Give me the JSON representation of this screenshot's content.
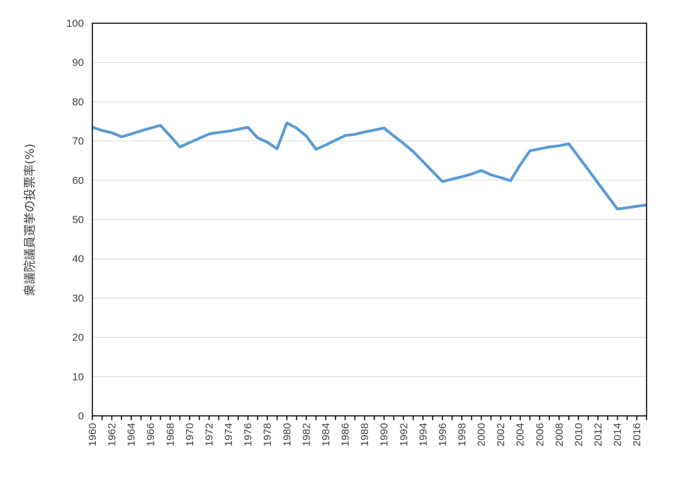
{
  "chart_data": {
    "type": "line",
    "title": "",
    "xlabel": "",
    "ylabel": "衆議院議員選挙の投票率(%)",
    "xlim": [
      1960,
      2017
    ],
    "ylim": [
      0,
      100
    ],
    "y_ticks": [
      0,
      10,
      20,
      30,
      40,
      50,
      60,
      70,
      80,
      90,
      100
    ],
    "x_tick_labels": [
      1960,
      1962,
      1964,
      1966,
      1968,
      1970,
      1972,
      1974,
      1976,
      1978,
      1980,
      1982,
      1984,
      1986,
      1988,
      1990,
      1992,
      1994,
      1996,
      1998,
      2000,
      2002,
      2004,
      2006,
      2008,
      2010,
      2012,
      2014,
      2016
    ],
    "grid": "horizontal",
    "legend": "none",
    "series": [
      {
        "color": "#5b9bd5",
        "x": [
          1960,
          1961,
          1962,
          1963,
          1964,
          1965,
          1966,
          1967,
          1968,
          1969,
          1970,
          1971,
          1972,
          1973,
          1974,
          1975,
          1976,
          1977,
          1978,
          1979,
          1980,
          1981,
          1982,
          1983,
          1984,
          1985,
          1986,
          1987,
          1988,
          1989,
          1990,
          1991,
          1992,
          1993,
          1994,
          1995,
          1996,
          1997,
          1998,
          1999,
          2000,
          2001,
          2002,
          2003,
          2004,
          2005,
          2006,
          2007,
          2008,
          2009,
          2010,
          2011,
          2012,
          2013,
          2014,
          2015,
          2016,
          2017
        ],
        "y": [
          73.5,
          72.7,
          72.1,
          71.1,
          71.8,
          72.6,
          73.3,
          74.0,
          71.3,
          68.5,
          69.6,
          70.7,
          71.8,
          72.2,
          72.5,
          73.0,
          73.5,
          70.8,
          69.7,
          68.0,
          74.6,
          73.3,
          71.3,
          67.9,
          69.0,
          70.2,
          71.4,
          71.7,
          72.3,
          72.8,
          73.3,
          71.3,
          69.4,
          67.3,
          64.8,
          62.2,
          59.7,
          60.3,
          60.9,
          61.6,
          62.5,
          61.4,
          60.7,
          59.9,
          63.9,
          67.5,
          68.0,
          68.5,
          68.8,
          69.3,
          66.0,
          62.7,
          59.3,
          56.0,
          52.7,
          53.0,
          53.4,
          53.7
        ]
      }
    ]
  }
}
